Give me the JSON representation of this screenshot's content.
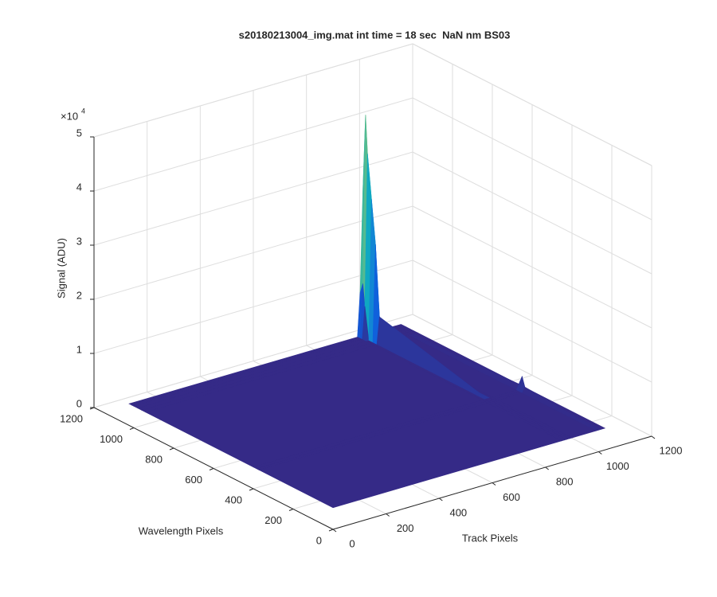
{
  "chart_data": {
    "type": "surface",
    "title": "s20180213004_img.mat int time = 18 sec  NaN nm BS03",
    "xlabel": "Track Pixels",
    "ylabel": "Wavelength Pixels",
    "zlabel": "Signal (ADU)",
    "z_multiplier": {
      "label": "×10",
      "exponent": "4"
    },
    "colormap": "parula",
    "grid": true,
    "x": [
      0,
      860,
      870,
      880,
      890,
      900,
      990,
      1000,
      1010,
      1024
    ],
    "y": [
      0,
      370,
      384,
      400,
      940,
      960,
      980,
      1000,
      1010,
      1024
    ],
    "z": [
      [
        4000,
        4000,
        4000,
        4000,
        4000,
        4000,
        4000,
        4000,
        4000,
        4000
      ],
      [
        4000,
        4000,
        4000,
        4000,
        4000,
        4000,
        4000,
        5000,
        4000,
        4000
      ],
      [
        4000,
        4000,
        4000,
        4000,
        4000,
        4000,
        4000,
        6700,
        4000,
        4000
      ],
      [
        4000,
        4000,
        4000,
        4000,
        4000,
        4000,
        4000,
        5000,
        4000,
        4000
      ],
      [
        4000,
        4000,
        4000,
        9000,
        4000,
        4000,
        4000,
        4000,
        4000,
        4000
      ],
      [
        4000,
        4000,
        4000,
        22000,
        11000,
        4000,
        4000,
        4000,
        4000,
        4000
      ],
      [
        4000,
        4000,
        4000,
        30000,
        14000,
        4000,
        4000,
        4000,
        4000,
        4000
      ],
      [
        4000,
        4000,
        10000,
        38000,
        18000,
        4000,
        4000,
        4000,
        4000,
        4000
      ],
      [
        4000,
        4000,
        14000,
        45000,
        20000,
        4000,
        4000,
        4000,
        4000,
        4000
      ],
      [
        4000,
        4000,
        12000,
        30000,
        15000,
        4000,
        4000,
        4000,
        4000,
        4000
      ]
    ],
    "xlim": [
      0,
      1200
    ],
    "ylim": [
      0,
      1200
    ],
    "zlim": [
      0,
      50000
    ],
    "xticks": [
      0,
      200,
      400,
      600,
      800,
      1000,
      1200
    ],
    "yticks": [
      0,
      200,
      400,
      600,
      800,
      1000,
      1200
    ],
    "zticks": [
      0,
      {
        "value": 10000,
        "label": "1"
      },
      {
        "value": 20000,
        "label": "2"
      },
      {
        "value": 30000,
        "label": "3"
      },
      {
        "value": 40000,
        "label": "4"
      },
      {
        "value": 50000,
        "label": "5"
      }
    ]
  }
}
